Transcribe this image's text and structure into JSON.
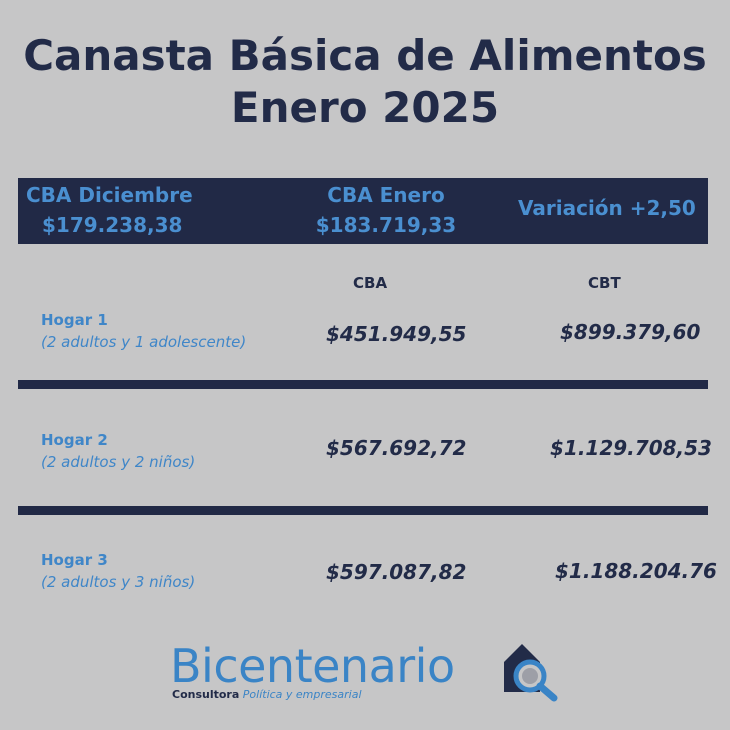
{
  "title": {
    "line1": "Canasta Básica de Alimentos",
    "line2": "Enero 2025"
  },
  "banner": {
    "dic_label": "CBA Diciembre",
    "dic_value": "$179.238,38",
    "ene_label": "CBA Enero",
    "ene_value": "$183.719,33",
    "variacion": "Variación +2,50"
  },
  "columns": {
    "cba": "CBA",
    "cbt": "CBT"
  },
  "rows": [
    {
      "name": "Hogar 1",
      "desc": "(2 adultos y 1 adolescente)",
      "cba": "$451.949,55",
      "cbt": "$899.379,60"
    },
    {
      "name": "Hogar 2",
      "desc": "(2 adultos y 2 niños)",
      "cba": "$567.692,72",
      "cbt": "$1.129.708,53"
    },
    {
      "name": "Hogar 3",
      "desc": "(2 adultos y 3 niños)",
      "cba": "$597.087,82",
      "cbt": "$1.188.204.76"
    }
  ],
  "logo": {
    "name": "Bicentenario",
    "sub1": "Consultora",
    "sub2": "Política y empresarial",
    "icon": "house-magnifier-icon"
  },
  "colors": {
    "navy": "#212946",
    "blue": "#3a84c6",
    "background": "#c6c6c7"
  }
}
